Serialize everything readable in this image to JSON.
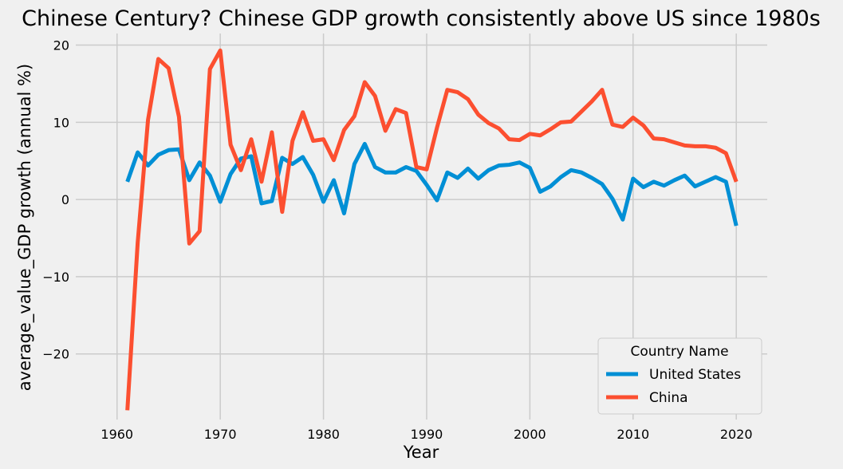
{
  "chart_data": {
    "type": "line",
    "title": "Chinese Century? Chinese GDP growth consistently above US since 1980s",
    "xlabel": "Year",
    "ylabel": "average_value_GDP growth (annual %)",
    "xlim": [
      1956,
      2023
    ],
    "ylim": [
      -28.5,
      21.5
    ],
    "xticks": [
      1960,
      1970,
      1980,
      1990,
      2000,
      2010,
      2020
    ],
    "yticks": [
      -20,
      -10,
      0,
      10,
      20
    ],
    "ytick_labels": [
      "−20",
      "−10",
      "0",
      "10",
      "20"
    ],
    "grid": true,
    "legend_title": "Country Name",
    "legend_position": "lower-right",
    "x": [
      1961,
      1962,
      1963,
      1964,
      1965,
      1966,
      1967,
      1968,
      1969,
      1970,
      1971,
      1972,
      1973,
      1974,
      1975,
      1976,
      1977,
      1978,
      1979,
      1980,
      1981,
      1982,
      1983,
      1984,
      1985,
      1986,
      1987,
      1988,
      1989,
      1990,
      1991,
      1992,
      1993,
      1994,
      1995,
      1996,
      1997,
      1998,
      1999,
      2000,
      2001,
      2002,
      2003,
      2004,
      2005,
      2006,
      2007,
      2008,
      2009,
      2010,
      2011,
      2012,
      2013,
      2014,
      2015,
      2016,
      2017,
      2018,
      2019,
      2020
    ],
    "series": [
      {
        "name": "United States",
        "color": "#008fd5",
        "values": [
          2.3,
          6.1,
          4.4,
          5.8,
          6.4,
          6.5,
          2.5,
          4.8,
          3.1,
          -0.3,
          3.3,
          5.3,
          5.6,
          -0.5,
          -0.2,
          5.4,
          4.6,
          5.5,
          3.2,
          -0.3,
          2.5,
          -1.8,
          4.6,
          7.2,
          4.2,
          3.5,
          3.5,
          4.2,
          3.7,
          1.9,
          -0.1,
          3.5,
          2.8,
          4.0,
          2.7,
          3.8,
          4.4,
          4.5,
          4.8,
          4.1,
          1.0,
          1.7,
          2.9,
          3.8,
          3.5,
          2.8,
          2.0,
          0.1,
          -2.6,
          2.7,
          1.6,
          2.3,
          1.8,
          2.5,
          3.1,
          1.7,
          2.3,
          2.9,
          2.3,
          -3.4
        ]
      },
      {
        "name": "China",
        "color": "#fc4f30",
        "values": [
          -27.3,
          -5.6,
          10.3,
          18.2,
          17.0,
          10.7,
          -5.7,
          -4.1,
          16.9,
          19.3,
          7.1,
          3.8,
          7.8,
          2.3,
          8.7,
          -1.6,
          7.6,
          11.3,
          7.6,
          7.8,
          5.1,
          9.0,
          10.8,
          15.2,
          13.4,
          8.9,
          11.7,
          11.2,
          4.2,
          3.9,
          9.3,
          14.2,
          13.9,
          13.0,
          11.0,
          9.9,
          9.2,
          7.8,
          7.7,
          8.5,
          8.3,
          9.1,
          10.0,
          10.1,
          11.4,
          12.7,
          14.2,
          9.7,
          9.4,
          10.6,
          9.6,
          7.9,
          7.8,
          7.4,
          7.0,
          6.9,
          6.9,
          6.7,
          6.0,
          2.3
        ]
      }
    ]
  }
}
